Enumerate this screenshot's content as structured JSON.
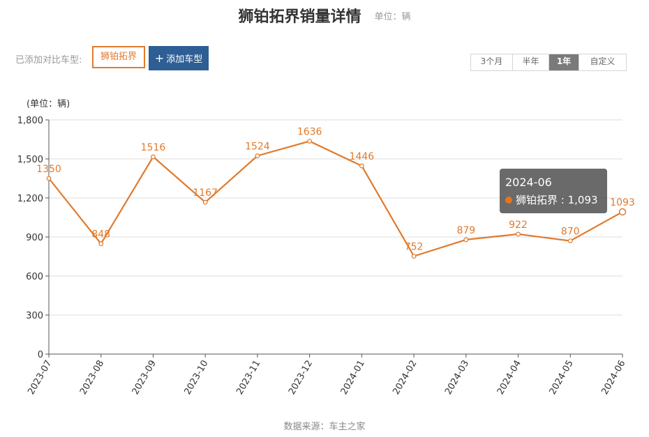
{
  "header": {
    "title": "狮铂拓界销量详情",
    "unit_note": "单位：辆"
  },
  "compare": {
    "label": "已添加对比车型:",
    "selected_model": "狮铂拓界",
    "add_button": "添加车型",
    "add_icon": "plus-icon"
  },
  "range_tabs": [
    {
      "label": "3个月",
      "active": false
    },
    {
      "label": "半年",
      "active": false
    },
    {
      "label": "1年",
      "active": true
    },
    {
      "label": "自定义",
      "active": false
    }
  ],
  "chart_data": {
    "type": "line",
    "ylabel": "(单位：辆)",
    "ylim": [
      0,
      1800
    ],
    "yticks": [
      0,
      300,
      600,
      900,
      1200,
      1500,
      1800
    ],
    "ytick_labels": [
      "0",
      "300",
      "600",
      "900",
      "1,200",
      "1,500",
      "1,800"
    ],
    "categories": [
      "2023-07",
      "2023-08",
      "2023-09",
      "2023-10",
      "2023-11",
      "2023-12",
      "2024-01",
      "2024-02",
      "2024-03",
      "2024-04",
      "2024-05",
      "2024-06"
    ],
    "series": [
      {
        "name": "狮铂拓界",
        "color": "#e07a2c",
        "values": [
          1350,
          848,
          1516,
          1167,
          1524,
          1636,
          1446,
          752,
          879,
          922,
          870,
          1093
        ],
        "labels": [
          "1350",
          "848",
          "1516",
          "1167",
          "1524",
          "1636",
          "1446",
          "752",
          "879",
          "922",
          "870",
          "1093"
        ]
      }
    ],
    "grid": true,
    "highlight_index": 11
  },
  "tooltip": {
    "date": "2024-06",
    "series_name": "狮铂拓界",
    "value_text": "1,093"
  },
  "footer": {
    "source": "数据来源：车主之家"
  }
}
